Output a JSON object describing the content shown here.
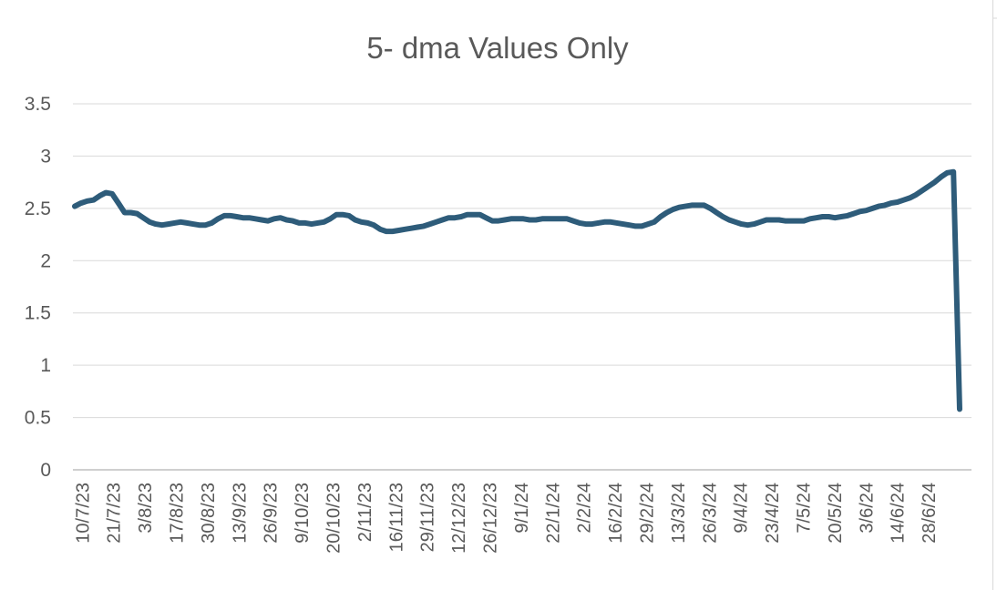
{
  "chart_data": {
    "type": "line",
    "title": "5- dma Values Only",
    "xlabel": "",
    "ylabel": "",
    "ylim": [
      0,
      3.5
    ],
    "yticks": [
      "0",
      "0.5",
      "1",
      "1.5",
      "2",
      "2.5",
      "3",
      "3.5"
    ],
    "x_tick_labels": [
      "10/7/23",
      "21/7/23",
      "3/8/23",
      "17/8/23",
      "30/8/23",
      "13/9/23",
      "26/9/23",
      "9/10/23",
      "20/10/23",
      "2/11/23",
      "16/11/23",
      "29/11/23",
      "12/12/23",
      "26/12/23",
      "9/1/24",
      "22/1/24",
      "2/2/24",
      "16/2/24",
      "29/2/24",
      "13/3/24",
      "26/3/24",
      "9/4/24",
      "23/4/24",
      "7/5/24",
      "20/5/24",
      "3/6/24",
      "14/6/24",
      "28/6/24"
    ],
    "grid": true,
    "legend": "none",
    "line_color": "#2E5C7A",
    "series": [
      {
        "values": [
          2.52,
          2.55,
          2.57,
          2.58,
          2.62,
          2.65,
          2.64,
          2.55,
          2.46,
          2.46,
          2.45,
          2.41,
          2.37,
          2.35,
          2.34,
          2.35,
          2.36,
          2.37,
          2.36,
          2.35,
          2.34,
          2.34,
          2.36,
          2.4,
          2.43,
          2.43,
          2.42,
          2.41,
          2.41,
          2.4,
          2.39,
          2.38,
          2.4,
          2.41,
          2.39,
          2.38,
          2.36,
          2.36,
          2.35,
          2.36,
          2.37,
          2.4,
          2.44,
          2.44,
          2.43,
          2.39,
          2.37,
          2.36,
          2.34,
          2.3,
          2.28,
          2.28,
          2.29,
          2.3,
          2.31,
          2.32,
          2.33,
          2.35,
          2.37,
          2.39,
          2.41,
          2.41,
          2.42,
          2.44,
          2.44,
          2.44,
          2.41,
          2.38,
          2.38,
          2.39,
          2.4,
          2.4,
          2.4,
          2.39,
          2.39,
          2.4,
          2.4,
          2.4,
          2.4,
          2.4,
          2.38,
          2.36,
          2.35,
          2.35,
          2.36,
          2.37,
          2.37,
          2.36,
          2.35,
          2.34,
          2.33,
          2.33,
          2.35,
          2.37,
          2.42,
          2.46,
          2.49,
          2.51,
          2.52,
          2.53,
          2.53,
          2.53,
          2.5,
          2.46,
          2.42,
          2.39,
          2.37,
          2.35,
          2.34,
          2.35,
          2.37,
          2.39,
          2.39,
          2.39,
          2.38,
          2.38,
          2.38,
          2.38,
          2.4,
          2.41,
          2.42,
          2.42,
          2.41,
          2.42,
          2.43,
          2.45,
          2.47,
          2.48,
          2.5,
          2.52,
          2.53,
          2.55,
          2.56,
          2.58,
          2.6,
          2.63,
          2.67,
          2.71,
          2.75,
          2.8,
          2.84,
          2.85,
          0.58
        ]
      }
    ]
  }
}
